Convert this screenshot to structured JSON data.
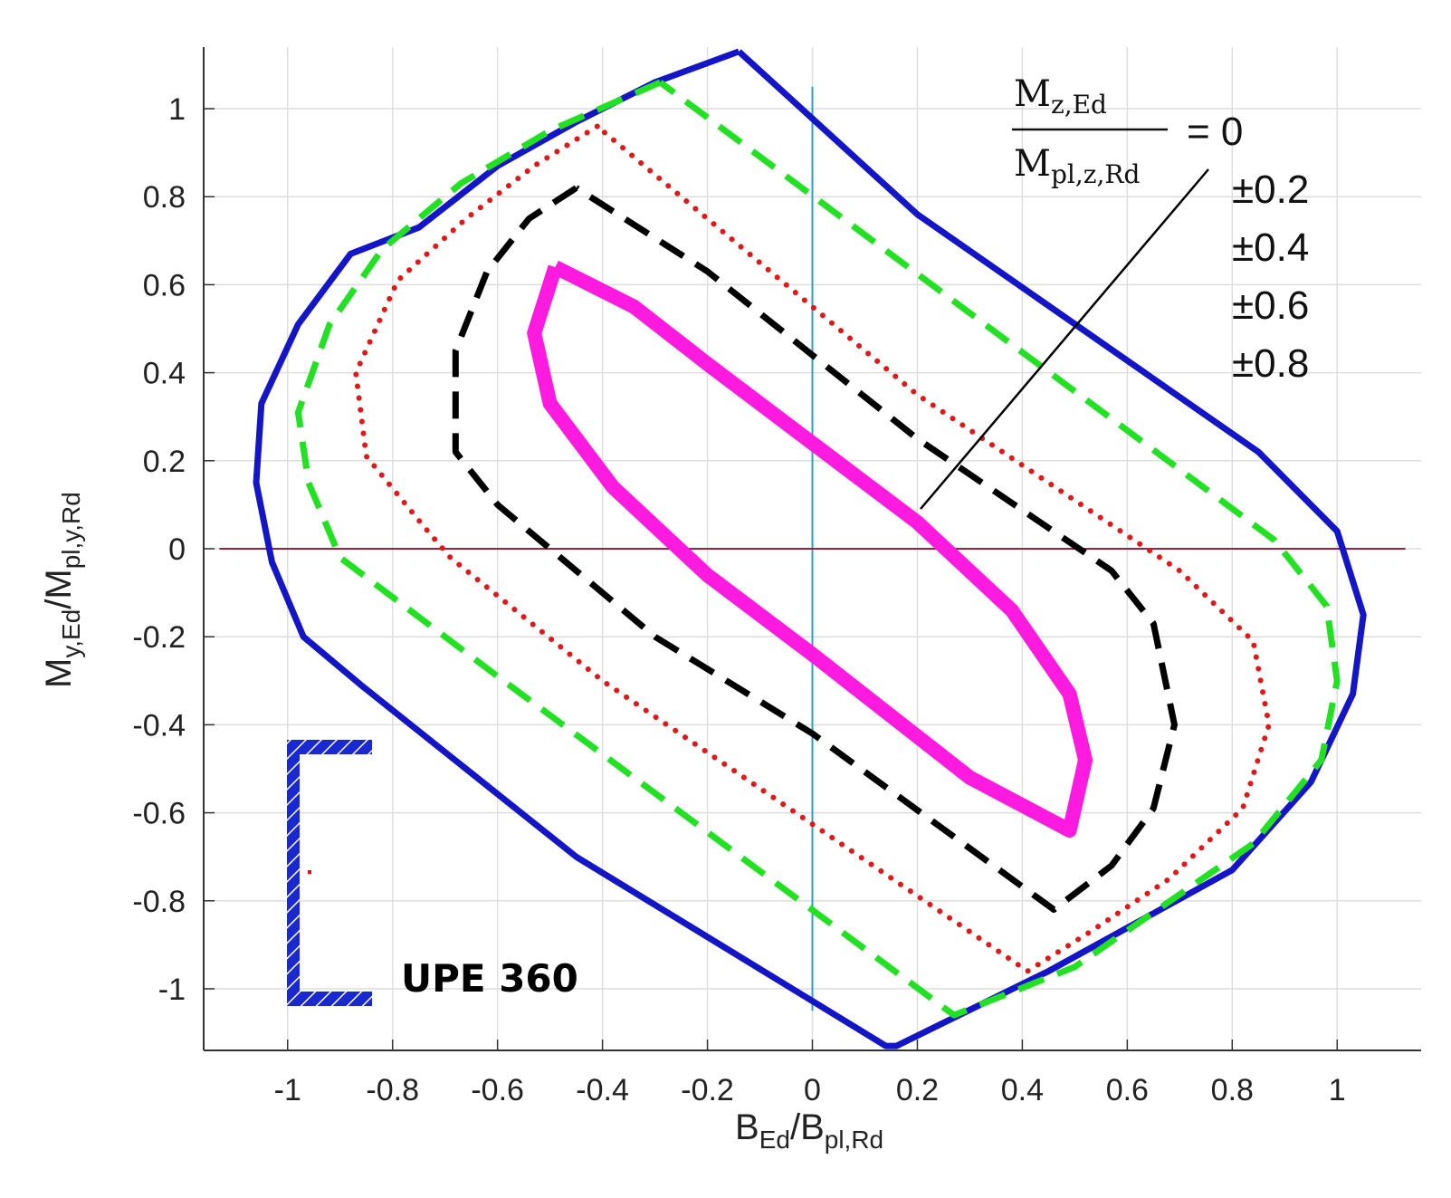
{
  "chart_data": {
    "type": "line",
    "title": "",
    "xlabel": {
      "main_b": "B",
      "sub_ed": "Ed",
      "slash": "/",
      "main_b2": "B",
      "sub_plrd": "pl,Rd"
    },
    "ylabel": {
      "main_m": "M",
      "sub_yed": "y,Ed",
      "slash": "/",
      "main_m2": "M",
      "sub_plyrd": "pl,y,Rd"
    },
    "xlim": [
      -1.16,
      1.16
    ],
    "ylim": [
      -1.14,
      1.14
    ],
    "grid": true,
    "x_ticks": [
      -1,
      -0.8,
      -0.6,
      -0.4,
      -0.2,
      0,
      0.2,
      0.4,
      0.6,
      0.8,
      1
    ],
    "y_ticks": [
      1,
      0.8,
      0.6,
      0.4,
      0.2,
      0,
      -0.2,
      -0.4,
      -0.6,
      -0.8,
      -1
    ],
    "x_tick_labels": [
      "-1",
      "-0.8",
      "-0.6",
      "-0.4",
      "-0.2",
      "0",
      "0.2",
      "0.4",
      "0.6",
      "0.8",
      "1"
    ],
    "y_tick_labels": [
      "1",
      "0.8",
      "0.6",
      "0.4",
      "0.2",
      "0",
      "-0.2",
      "-0.4",
      "-0.6",
      "-0.8",
      "-1"
    ],
    "series": [
      {
        "name": "Mz,Ed/Mpl,z,Rd = 0",
        "color": "#1515c8",
        "style": "solid",
        "points": [
          [
            -0.14,
            1.13
          ],
          [
            -0.3,
            1.06
          ],
          [
            -0.45,
            0.97
          ],
          [
            -0.6,
            0.87
          ],
          [
            -0.75,
            0.73
          ],
          [
            -0.88,
            0.67
          ],
          [
            -0.98,
            0.51
          ],
          [
            -1.05,
            0.33
          ],
          [
            -1.06,
            0.15
          ],
          [
            -1.03,
            -0.03
          ],
          [
            -0.97,
            -0.2
          ],
          [
            -0.86,
            -0.31
          ],
          [
            -0.45,
            -0.7
          ],
          [
            0.14,
            -1.13
          ],
          [
            0.16,
            -1.13
          ],
          [
            0.45,
            -0.96
          ],
          [
            0.8,
            -0.73
          ],
          [
            0.95,
            -0.53
          ],
          [
            1.03,
            -0.33
          ],
          [
            1.05,
            -0.15
          ],
          [
            1.0,
            0.04
          ],
          [
            0.85,
            0.22
          ],
          [
            0.2,
            0.76
          ],
          [
            -0.14,
            1.13
          ]
        ]
      },
      {
        "name": "±0.2",
        "color": "#22e022",
        "style": "dashed",
        "points": [
          [
            -0.29,
            1.06
          ],
          [
            -0.5,
            0.95
          ],
          [
            -0.67,
            0.83
          ],
          [
            -0.82,
            0.68
          ],
          [
            -0.92,
            0.51
          ],
          [
            -0.98,
            0.31
          ],
          [
            -0.96,
            0.15
          ],
          [
            -0.9,
            -0.02
          ],
          [
            -0.6,
            -0.29
          ],
          [
            0.27,
            -1.06
          ],
          [
            0.5,
            -0.95
          ],
          [
            0.84,
            -0.67
          ],
          [
            0.97,
            -0.48
          ],
          [
            1.0,
            -0.3
          ],
          [
            0.98,
            -0.13
          ],
          [
            0.88,
            0.02
          ],
          [
            -0.29,
            1.06
          ]
        ]
      },
      {
        "name": "±0.4",
        "color": "#e01818",
        "style": "dotted",
        "points": [
          [
            -0.41,
            0.96
          ],
          [
            -0.53,
            0.87
          ],
          [
            -0.66,
            0.75
          ],
          [
            -0.79,
            0.61
          ],
          [
            -0.87,
            0.4
          ],
          [
            -0.85,
            0.21
          ],
          [
            -0.74,
            0.05
          ],
          [
            -0.69,
            -0.02
          ],
          [
            -0.4,
            -0.3
          ],
          [
            0.41,
            -0.96
          ],
          [
            0.53,
            -0.87
          ],
          [
            0.68,
            -0.75
          ],
          [
            0.82,
            -0.59
          ],
          [
            0.87,
            -0.4
          ],
          [
            0.84,
            -0.21
          ],
          [
            0.7,
            -0.05
          ],
          [
            0.2,
            0.35
          ],
          [
            -0.41,
            0.96
          ]
        ]
      },
      {
        "name": "±0.6",
        "color": "#000000",
        "style": "dashed",
        "points": [
          [
            -0.45,
            0.82
          ],
          [
            -0.54,
            0.75
          ],
          [
            -0.62,
            0.63
          ],
          [
            -0.68,
            0.45
          ],
          [
            -0.68,
            0.22
          ],
          [
            -0.6,
            0.1
          ],
          [
            -0.5,
            0.0
          ],
          [
            -0.3,
            -0.2
          ],
          [
            0.0,
            -0.42
          ],
          [
            0.46,
            -0.82
          ],
          [
            0.57,
            -0.72
          ],
          [
            0.65,
            -0.59
          ],
          [
            0.69,
            -0.4
          ],
          [
            0.65,
            -0.17
          ],
          [
            0.57,
            -0.05
          ],
          [
            0.2,
            0.25
          ],
          [
            -0.2,
            0.63
          ],
          [
            -0.45,
            0.82
          ]
        ]
      },
      {
        "name": "±0.8",
        "color": "#ff1ae0",
        "style": "solid-thick",
        "points": [
          [
            -0.49,
            0.64
          ],
          [
            -0.34,
            0.55
          ],
          [
            -0.2,
            0.42
          ],
          [
            0.0,
            0.24
          ],
          [
            0.2,
            0.06
          ],
          [
            0.38,
            -0.14
          ],
          [
            0.49,
            -0.33
          ],
          [
            0.52,
            -0.48
          ],
          [
            0.49,
            -0.64
          ],
          [
            0.3,
            -0.52
          ],
          [
            0.0,
            -0.24
          ],
          [
            -0.2,
            -0.06
          ],
          [
            -0.38,
            0.14
          ],
          [
            -0.5,
            0.33
          ],
          [
            -0.53,
            0.49
          ],
          [
            -0.49,
            0.64
          ]
        ]
      }
    ],
    "reference_lines": [
      {
        "name": "x-zero-line",
        "axis": "x",
        "value": 0,
        "from": -1.05,
        "to": 1.05,
        "color": "#2a9fd6"
      },
      {
        "name": "y-zero-line",
        "axis": "y",
        "value": 0,
        "from": -1.13,
        "to": 1.13,
        "color": "#a0203a"
      }
    ],
    "legend_annotation": {
      "numerator_main": "M",
      "numerator_sub": "z,Ed",
      "denominator_main": "M",
      "denominator_sub": "pl,z,Rd",
      "equals": "= 0",
      "values": [
        "±0.2",
        "±0.4",
        "±0.6",
        "±0.8"
      ],
      "leader_from": [
        0.34,
        0.09
      ]
    },
    "section_label": "UPE 360",
    "section_colors": {
      "hatch": "#1a28d0",
      "centroid": "#ff0000"
    }
  }
}
